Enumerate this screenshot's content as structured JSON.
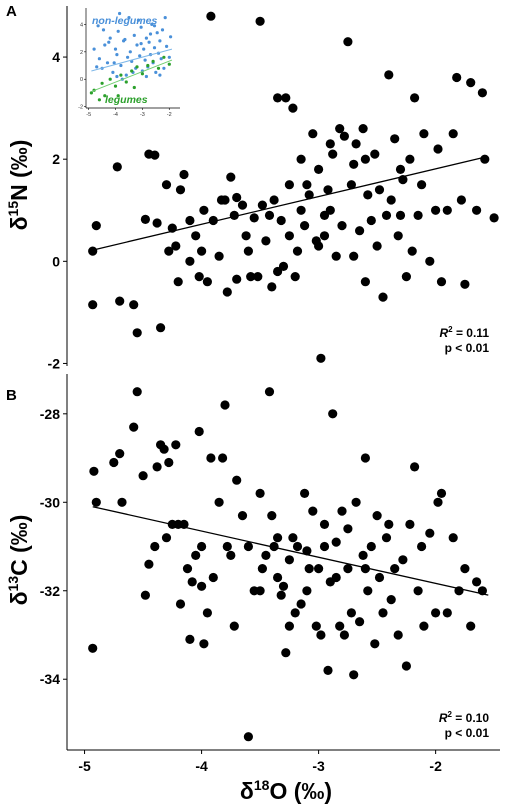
{
  "chart_data": [
    {
      "type": "scatter",
      "panel_label": "A",
      "xlim": [
        -5.15,
        -1.45
      ],
      "ylim": [
        -2.05,
        5.0
      ],
      "yticks": [
        {
          "value": -2,
          "label": "-2"
        },
        {
          "value": 0,
          "label": "0"
        },
        {
          "value": 2,
          "label": "2"
        },
        {
          "value": 4,
          "label": "4"
        }
      ],
      "ylabel": {
        "delta": "δ",
        "sup": "15",
        "element": "N (‰)"
      },
      "grid": false,
      "fit_line": {
        "x": [
          -4.93,
          -1.56
        ],
        "y": [
          0.22,
          2.05
        ]
      },
      "annotation": {
        "r2_prefix": "R",
        "r2_sup": "2",
        "r2_value": " = 0.11",
        "p_text": "p < 0.01"
      },
      "points": [
        [
          -4.93,
          0.2
        ],
        [
          -4.93,
          -0.85
        ],
        [
          -4.9,
          0.7
        ],
        [
          -4.72,
          1.85
        ],
        [
          -4.7,
          -0.78
        ],
        [
          -4.58,
          -0.85
        ],
        [
          -4.55,
          -1.4
        ],
        [
          -4.48,
          0.82
        ],
        [
          -4.45,
          2.1
        ],
        [
          -4.4,
          2.08
        ],
        [
          -4.38,
          0.75
        ],
        [
          -4.35,
          -1.3
        ],
        [
          -4.3,
          1.5
        ],
        [
          -4.28,
          0.2
        ],
        [
          -4.25,
          0.65
        ],
        [
          -4.22,
          0.3
        ],
        [
          -4.2,
          -0.4
        ],
        [
          -4.18,
          1.4
        ],
        [
          -4.15,
          1.7
        ],
        [
          -4.1,
          0.0
        ],
        [
          -4.05,
          0.5
        ],
        [
          -4.02,
          -0.3
        ],
        [
          -4.0,
          0.2
        ],
        [
          -3.98,
          1.0
        ],
        [
          -3.95,
          -0.4
        ],
        [
          -3.92,
          4.8
        ],
        [
          -3.9,
          0.8
        ],
        [
          -3.85,
          0.1
        ],
        [
          -3.83,
          1.2
        ],
        [
          -3.8,
          1.2
        ],
        [
          -3.78,
          -0.6
        ],
        [
          -3.75,
          1.65
        ],
        [
          -3.72,
          0.9
        ],
        [
          -3.7,
          -0.35
        ],
        [
          -3.65,
          1.1
        ],
        [
          -3.62,
          0.5
        ],
        [
          -3.6,
          0.2
        ],
        [
          -3.55,
          0.85
        ],
        [
          -3.52,
          -0.3
        ],
        [
          -3.5,
          4.7
        ],
        [
          -3.48,
          1.1
        ],
        [
          -3.45,
          0.4
        ],
        [
          -3.42,
          0.9
        ],
        [
          -3.4,
          -0.5
        ],
        [
          -3.38,
          1.2
        ],
        [
          -3.35,
          3.2
        ],
        [
          -3.32,
          0.8
        ],
        [
          -3.3,
          -0.1
        ],
        [
          -3.28,
          3.2
        ],
        [
          -3.25,
          0.5
        ],
        [
          -3.22,
          3.0
        ],
        [
          -3.2,
          -0.3
        ],
        [
          -3.18,
          0.2
        ],
        [
          -3.15,
          1.0
        ],
        [
          -3.12,
          0.7
        ],
        [
          -3.1,
          1.5
        ],
        [
          -3.08,
          1.3
        ],
        [
          -3.05,
          2.5
        ],
        [
          -3.02,
          0.4
        ],
        [
          -3.0,
          1.8
        ],
        [
          -2.98,
          -1.9
        ],
        [
          -2.95,
          0.9
        ],
        [
          -2.92,
          1.4
        ],
        [
          -2.9,
          1.0
        ],
        [
          -2.88,
          2.1
        ],
        [
          -2.85,
          0.1
        ],
        [
          -2.82,
          2.6
        ],
        [
          -2.8,
          0.7
        ],
        [
          -2.78,
          2.45
        ],
        [
          -2.75,
          4.3
        ],
        [
          -2.72,
          1.5
        ],
        [
          -2.7,
          0.1
        ],
        [
          -2.68,
          2.3
        ],
        [
          -2.65,
          0.6
        ],
        [
          -2.62,
          2.6
        ],
        [
          -2.6,
          -0.4
        ],
        [
          -2.58,
          1.3
        ],
        [
          -2.55,
          0.8
        ],
        [
          -2.52,
          2.1
        ],
        [
          -2.5,
          0.3
        ],
        [
          -2.48,
          1.4
        ],
        [
          -2.45,
          -0.7
        ],
        [
          -2.42,
          0.9
        ],
        [
          -2.4,
          3.65
        ],
        [
          -2.38,
          1.2
        ],
        [
          -2.35,
          2.4
        ],
        [
          -2.32,
          0.5
        ],
        [
          -2.3,
          1.8
        ],
        [
          -2.28,
          1.6
        ],
        [
          -2.25,
          -0.3
        ],
        [
          -2.22,
          2.0
        ],
        [
          -2.2,
          0.2
        ],
        [
          -2.18,
          3.2
        ],
        [
          -2.15,
          0.9
        ],
        [
          -2.12,
          1.5
        ],
        [
          -2.1,
          2.5
        ],
        [
          -2.05,
          0.0
        ],
        [
          -2.0,
          1.0
        ],
        [
          -1.98,
          2.2
        ],
        [
          -1.95,
          -0.4
        ],
        [
          -1.9,
          1.0
        ],
        [
          -1.85,
          2.5
        ],
        [
          -1.82,
          3.6
        ],
        [
          -1.78,
          1.2
        ],
        [
          -1.75,
          -0.45
        ],
        [
          -1.7,
          3.5
        ],
        [
          -1.65,
          1.0
        ],
        [
          -1.6,
          3.3
        ],
        [
          -1.58,
          2.0
        ],
        [
          -1.5,
          0.85
        ],
        [
          -3.58,
          -0.3
        ],
        [
          -3.15,
          2.0
        ],
        [
          -2.9,
          2.3
        ],
        [
          -2.6,
          2.0
        ],
        [
          -3.0,
          0.3
        ],
        [
          -2.3,
          0.9
        ],
        [
          -3.7,
          1.25
        ],
        [
          -4.1,
          0.8
        ],
        [
          -3.35,
          -0.2
        ],
        [
          -2.7,
          1.9
        ],
        [
          -2.95,
          0.5
        ],
        [
          -3.25,
          1.5
        ]
      ]
    },
    {
      "type": "scatter",
      "panel_label": "B",
      "xlim": [
        -5.15,
        -1.45
      ],
      "ylim": [
        -35.6,
        -27.1
      ],
      "xticks": [
        {
          "value": -5,
          "label": "-5"
        },
        {
          "value": -4,
          "label": "-4"
        },
        {
          "value": -3,
          "label": "-3"
        },
        {
          "value": -2,
          "label": "-2"
        }
      ],
      "yticks": [
        {
          "value": -34,
          "label": "-34"
        },
        {
          "value": -32,
          "label": "-32"
        },
        {
          "value": -30,
          "label": "-30"
        },
        {
          "value": -28,
          "label": "-28"
        }
      ],
      "ylabel": {
        "delta": "δ",
        "sup": "13",
        "element": "C (‰)"
      },
      "xlabel": {
        "delta": "δ",
        "sup": "18",
        "element": "O (‰)"
      },
      "grid": false,
      "fit_line": {
        "x": [
          -4.93,
          -1.55
        ],
        "y": [
          -30.1,
          -32.1
        ]
      },
      "annotation": {
        "r2_prefix": "R",
        "r2_sup": "2",
        "r2_value": " = 0.10",
        "p_text": "p < 0.01"
      },
      "points": [
        [
          -4.93,
          -33.3
        ],
        [
          -4.92,
          -29.3
        ],
        [
          -4.9,
          -30.0
        ],
        [
          -4.75,
          -29.1
        ],
        [
          -4.7,
          -28.9
        ],
        [
          -4.68,
          -30.0
        ],
        [
          -4.58,
          -28.3
        ],
        [
          -4.55,
          -27.5
        ],
        [
          -4.5,
          -29.4
        ],
        [
          -4.48,
          -32.1
        ],
        [
          -4.45,
          -31.4
        ],
        [
          -4.4,
          -31.0
        ],
        [
          -4.38,
          -29.2
        ],
        [
          -4.35,
          -28.7
        ],
        [
          -4.32,
          -28.8
        ],
        [
          -4.3,
          -30.8
        ],
        [
          -4.28,
          -29.1
        ],
        [
          -4.25,
          -30.5
        ],
        [
          -4.22,
          -28.7
        ],
        [
          -4.2,
          -30.5
        ],
        [
          -4.18,
          -32.3
        ],
        [
          -4.15,
          -30.5
        ],
        [
          -4.12,
          -31.5
        ],
        [
          -4.1,
          -33.1
        ],
        [
          -4.08,
          -31.8
        ],
        [
          -4.05,
          -31.2
        ],
        [
          -4.02,
          -28.4
        ],
        [
          -4.0,
          -31.0
        ],
        [
          -3.98,
          -33.2
        ],
        [
          -3.95,
          -32.5
        ],
        [
          -3.92,
          -29.0
        ],
        [
          -3.9,
          -31.7
        ],
        [
          -3.85,
          -30.0
        ],
        [
          -3.82,
          -29.0
        ],
        [
          -3.8,
          -27.8
        ],
        [
          -3.78,
          -31.0
        ],
        [
          -3.75,
          -31.2
        ],
        [
          -3.72,
          -32.8
        ],
        [
          -3.7,
          -29.5
        ],
        [
          -3.65,
          -30.3
        ],
        [
          -3.6,
          -35.3
        ],
        [
          -3.55,
          -32.0
        ],
        [
          -3.5,
          -29.8
        ],
        [
          -3.48,
          -31.5
        ],
        [
          -3.45,
          -31.2
        ],
        [
          -3.42,
          -27.5
        ],
        [
          -3.4,
          -30.3
        ],
        [
          -3.38,
          -31.0
        ],
        [
          -3.35,
          -31.7
        ],
        [
          -3.32,
          -32.1
        ],
        [
          -3.3,
          -31.9
        ],
        [
          -3.28,
          -33.4
        ],
        [
          -3.25,
          -31.3
        ],
        [
          -3.22,
          -30.8
        ],
        [
          -3.2,
          -32.5
        ],
        [
          -3.18,
          -31.0
        ],
        [
          -3.15,
          -32.3
        ],
        [
          -3.12,
          -29.8
        ],
        [
          -3.1,
          -32.0
        ],
        [
          -3.08,
          -31.5
        ],
        [
          -3.05,
          -30.2
        ],
        [
          -3.02,
          -32.8
        ],
        [
          -3.0,
          -31.5
        ],
        [
          -2.98,
          -33.0
        ],
        [
          -2.95,
          -30.5
        ],
        [
          -2.92,
          -33.8
        ],
        [
          -2.9,
          -31.8
        ],
        [
          -2.88,
          -28.0
        ],
        [
          -2.85,
          -30.9
        ],
        [
          -2.82,
          -32.8
        ],
        [
          -2.8,
          -30.2
        ],
        [
          -2.78,
          -33.0
        ],
        [
          -2.75,
          -31.5
        ],
        [
          -2.72,
          -32.5
        ],
        [
          -2.7,
          -33.9
        ],
        [
          -2.68,
          -30.0
        ],
        [
          -2.65,
          -32.7
        ],
        [
          -2.62,
          -31.2
        ],
        [
          -2.6,
          -29.0
        ],
        [
          -2.58,
          -32.0
        ],
        [
          -2.55,
          -31.0
        ],
        [
          -2.52,
          -33.2
        ],
        [
          -2.5,
          -30.3
        ],
        [
          -2.48,
          -31.7
        ],
        [
          -2.45,
          -32.5
        ],
        [
          -2.42,
          -30.8
        ],
        [
          -2.4,
          -30.5
        ],
        [
          -2.38,
          -32.2
        ],
        [
          -2.35,
          -31.5
        ],
        [
          -2.32,
          -33.0
        ],
        [
          -2.28,
          -31.3
        ],
        [
          -2.25,
          -33.7
        ],
        [
          -2.22,
          -30.5
        ],
        [
          -2.18,
          -29.2
        ],
        [
          -2.15,
          -32.0
        ],
        [
          -2.12,
          -31.0
        ],
        [
          -2.1,
          -32.8
        ],
        [
          -2.05,
          -30.7
        ],
        [
          -2.0,
          -32.5
        ],
        [
          -1.98,
          -30.0
        ],
        [
          -1.95,
          -29.8
        ],
        [
          -1.9,
          -32.5
        ],
        [
          -1.85,
          -30.8
        ],
        [
          -1.8,
          -32.0
        ],
        [
          -1.75,
          -31.5
        ],
        [
          -1.7,
          -32.8
        ],
        [
          -1.65,
          -31.8
        ],
        [
          -1.6,
          -32.0
        ],
        [
          -3.5,
          -32.0
        ],
        [
          -3.1,
          -31.1
        ],
        [
          -2.85,
          -31.7
        ],
        [
          -3.35,
          -30.8
        ],
        [
          -2.95,
          -31.0
        ],
        [
          -3.6,
          -31.0
        ],
        [
          -4.0,
          -31.9
        ],
        [
          -2.6,
          -31.5
        ],
        [
          -3.25,
          -32.8
        ],
        [
          -2.75,
          -30.6
        ]
      ]
    }
  ],
  "inset": {
    "xlim": [
      -5.1,
      -1.6
    ],
    "ylim": [
      -2.1,
      5.2
    ],
    "xticks": [
      {
        "value": -5,
        "label": "-5"
      },
      {
        "value": -4,
        "label": "-4"
      },
      {
        "value": -3,
        "label": "-3"
      },
      {
        "value": -2,
        "label": "-2"
      }
    ],
    "yticks": [
      {
        "value": -2,
        "label": "-2"
      },
      {
        "value": 0,
        "label": "0"
      },
      {
        "value": 2,
        "label": "2"
      },
      {
        "value": 4,
        "label": "4"
      }
    ],
    "labels": {
      "non_legumes": "non-legumes",
      "legumes": "legumes"
    },
    "colors": {
      "non_legumes": "#4a90d9",
      "legumes": "#2ca02c"
    },
    "non_legume_line": {
      "x": [
        -4.9,
        -1.9
      ],
      "y": [
        0.6,
        2.2
      ]
    },
    "legume_line": {
      "x": [
        -4.9,
        -1.9
      ],
      "y": [
        -0.9,
        1.4
      ]
    },
    "non_legume_points": [
      [
        -4.6,
        1.5
      ],
      [
        -4.5,
        0.8
      ],
      [
        -4.4,
        2.5
      ],
      [
        -4.3,
        1.2
      ],
      [
        -4.2,
        3.0
      ],
      [
        -4.1,
        0.5
      ],
      [
        -4.0,
        2.2
      ],
      [
        -3.95,
        1.8
      ],
      [
        -3.9,
        3.5
      ],
      [
        -3.8,
        1.0
      ],
      [
        -3.7,
        2.8
      ],
      [
        -3.6,
        0.3
      ],
      [
        -3.55,
        1.6
      ],
      [
        -3.5,
        4.5
      ],
      [
        -3.45,
        2.0
      ],
      [
        -3.4,
        1.3
      ],
      [
        -3.3,
        3.2
      ],
      [
        -3.25,
        0.8
      ],
      [
        -3.2,
        2.5
      ],
      [
        -3.1,
        1.7
      ],
      [
        -3.05,
        3.8
      ],
      [
        -3.0,
        0.6
      ],
      [
        -2.95,
        2.2
      ],
      [
        -2.9,
        1.4
      ],
      [
        -2.85,
        3.0
      ],
      [
        -2.8,
        0.9
      ],
      [
        -2.75,
        2.7
      ],
      [
        -2.7,
        1.8
      ],
      [
        -2.65,
        4.0
      ],
      [
        -2.6,
        1.2
      ],
      [
        -2.55,
        2.3
      ],
      [
        -2.5,
        0.5
      ],
      [
        -2.45,
        3.4
      ],
      [
        -2.4,
        1.9
      ],
      [
        -2.35,
        2.8
      ],
      [
        -2.3,
        1.5
      ],
      [
        -2.25,
        3.6
      ],
      [
        -2.2,
        0.8
      ],
      [
        -2.1,
        2.4
      ],
      [
        -2.0,
        1.6
      ],
      [
        -1.95,
        3.1
      ],
      [
        -4.8,
        2.2
      ],
      [
        -4.7,
        0.9
      ],
      [
        -3.85,
        4.8
      ],
      [
        -3.15,
        4.3
      ],
      [
        -2.85,
        0.2
      ],
      [
        -3.65,
        2.9
      ],
      [
        -4.05,
        1.2
      ],
      [
        -3.35,
        0.5
      ],
      [
        -2.55,
        3.9
      ],
      [
        -4.45,
        3.6
      ],
      [
        -3.75,
        0.0
      ],
      [
        -2.15,
        4.5
      ],
      [
        -3.05,
        2.6
      ],
      [
        -4.25,
        2.7
      ],
      [
        -2.35,
        0.3
      ],
      [
        -2.7,
        3.3
      ],
      [
        -4.65,
        3.9
      ],
      [
        -3.95,
        0.2
      ]
    ],
    "legume_points": [
      [
        -4.9,
        -1.0
      ],
      [
        -4.8,
        -0.8
      ],
      [
        -4.6,
        -1.5
      ],
      [
        -4.5,
        -0.3
      ],
      [
        -4.4,
        -1.2
      ],
      [
        -4.2,
        0.0
      ],
      [
        -4.0,
        -0.5
      ],
      [
        -3.8,
        0.3
      ],
      [
        -3.6,
        -0.2
      ],
      [
        -3.4,
        0.6
      ],
      [
        -3.2,
        0.9
      ],
      [
        -3.0,
        0.4
      ],
      [
        -2.8,
        1.0
      ],
      [
        -2.6,
        1.3
      ],
      [
        -2.4,
        0.8
      ],
      [
        -2.2,
        1.6
      ],
      [
        -2.0,
        1.1
      ],
      [
        -3.9,
        -1.2
      ],
      [
        -3.3,
        -0.6
      ]
    ]
  }
}
